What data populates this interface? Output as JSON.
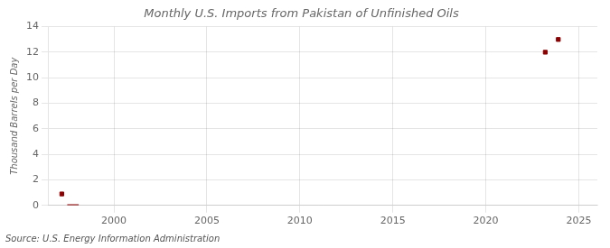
{
  "chart_data": {
    "type": "scatter",
    "title": "Monthly U.S. Imports from Pakistan of Unfinished Oils",
    "ylabel": "Thousand Barrels per Day",
    "annotations": [
      "Source: U.S. Energy Information Administration"
    ],
    "x": [
      1997.2,
      1997.8,
      2023.2,
      2023.9
    ],
    "series": [
      {
        "type": "bar",
        "color": "#8b0000",
        "values": [
          null,
          0.06,
          null,
          null
        ]
      },
      {
        "type": "scatter",
        "marker": "square",
        "color": "#8b0000",
        "values": [
          0.9,
          null,
          12.0,
          13.0
        ]
      }
    ],
    "xlim": [
      1996.5,
      2026.0
    ],
    "xticks": [
      2000,
      2005,
      2010,
      2015,
      2020,
      2025
    ],
    "ylim": [
      0,
      14
    ],
    "yticks": [
      0,
      2,
      4,
      6,
      8,
      10,
      12,
      14
    ],
    "grid": true
  }
}
